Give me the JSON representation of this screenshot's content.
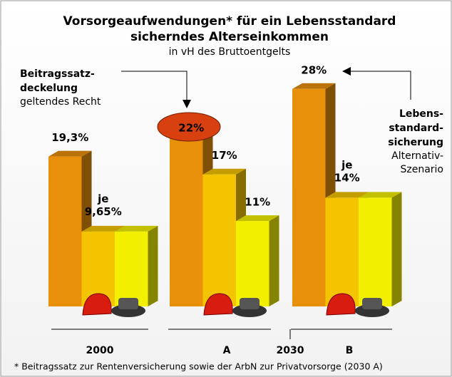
{
  "chart_data": {
    "type": "bar3d",
    "title": [
      "Vorsorgeaufwendungen* für ein Lebensstandard",
      "sicherndes Alterseinkommen"
    ],
    "subtitle": "in vH des Bruttoentgelts",
    "categories": [
      "2000",
      "A",
      "B"
    ],
    "group_label": "2030",
    "series": [
      {
        "color": "#e8900a",
        "values": [
          19.3,
          22,
          28
        ],
        "value_labels": [
          "19,3%",
          "22%",
          "28%"
        ]
      },
      {
        "color": "#f5c400",
        "values": [
          9.65,
          17,
          14
        ],
        "value_labels": [
          "je 9,65%",
          "17%",
          "je 14%"
        ]
      },
      {
        "color": "#f2f000",
        "values": [
          9.65,
          11,
          14
        ],
        "value_labels": [
          null,
          "11%",
          null
        ]
      }
    ],
    "annotations": [
      {
        "bold": [
          "Beitragssatz-",
          "deckelung"
        ],
        "text": [
          "geltendes Recht"
        ]
      },
      {
        "bold": [
          "Lebens-",
          "standard-",
          "sicherung"
        ],
        "text": [
          "Alternativ-",
          "Szenario"
        ]
      }
    ],
    "footnote": "* Beitragssatz zur Rentenversicherung sowie der ArbN zur Privatvorsorge (2030 A)"
  }
}
